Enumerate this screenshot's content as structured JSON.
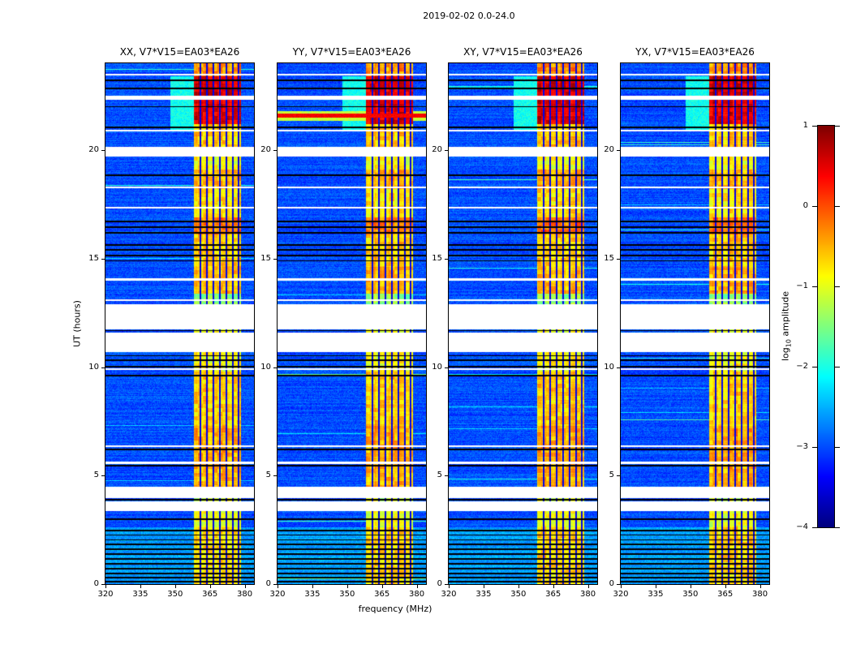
{
  "figure": {
    "title": "2019-02-02 0.0-24.0"
  },
  "chart_data": {
    "type": "heatmap",
    "title": "2019-02-02 0.0-24.0",
    "xlabel": "frequency (MHz)",
    "ylabel": "UT (hours)",
    "x_range_mhz": [
      320,
      384
    ],
    "y_range_hours": [
      0,
      24
    ],
    "xticks": [
      320,
      335,
      350,
      365,
      380
    ],
    "yticks": [
      0,
      5,
      10,
      15,
      20
    ],
    "colormap": "jet",
    "value_range_log10": [
      -4,
      1
    ],
    "legend_position": "right-colorbar",
    "grid": false,
    "panels": [
      {
        "id": "XX",
        "title": "XX, V7*V15=EA03*EA26"
      },
      {
        "id": "YY",
        "title": "YY, V7*V15=EA03*EA26"
      },
      {
        "id": "XY",
        "title": "XY, V7*V15=EA03*EA26"
      },
      {
        "id": "YX",
        "title": "YX, V7*V15=EA03*EA26"
      }
    ],
    "colorbar": {
      "label": "log10 amplitude",
      "label_prefix": "log",
      "label_sub": "10",
      "label_suffix": " amplitude",
      "ticks": [
        1,
        0,
        -1,
        -2,
        -3,
        -4
      ]
    },
    "features": {
      "background_level": -3.0,
      "background_noise": 0.22,
      "bottom_region_end": 2.62,
      "bottom_background_level": -2.6,
      "band": {
        "f_start": 358.0,
        "f_end": 378.5
      },
      "band_stripes_mhz": [
        360.9,
        363.7,
        366.5,
        369.3,
        372.1,
        374.9,
        377.3
      ],
      "band_profile": [
        [
          0.0,
          2.62,
          -0.7
        ],
        [
          2.62,
          3.35,
          -0.95
        ],
        [
          3.82,
          3.95,
          -1.1
        ],
        [
          4.5,
          5.3,
          -0.5
        ],
        [
          5.3,
          7.3,
          -0.45
        ],
        [
          7.3,
          9.8,
          -0.65
        ],
        [
          9.8,
          10.7,
          -0.9
        ],
        [
          11.6,
          11.75,
          -1.0
        ],
        [
          12.9,
          13.4,
          -1.4
        ],
        [
          13.4,
          14.6,
          -0.5
        ],
        [
          14.6,
          16.1,
          -0.65
        ],
        [
          16.1,
          16.9,
          -0.2
        ],
        [
          16.9,
          18.2,
          -0.75
        ],
        [
          18.2,
          19.1,
          -0.5
        ],
        [
          19.1,
          19.7,
          -0.9
        ],
        [
          20.15,
          21.2,
          -0.6
        ],
        [
          21.2,
          22.33,
          0.55
        ],
        [
          22.5,
          23.4,
          0.6
        ],
        [
          23.4,
          24.0,
          -0.35
        ]
      ],
      "white_gaps_hours": [
        [
          3.35,
          3.82
        ],
        [
          3.95,
          4.5
        ],
        [
          10.7,
          11.6
        ],
        [
          11.75,
          12.9
        ],
        [
          19.7,
          20.15
        ],
        [
          22.33,
          22.5
        ],
        [
          5.55,
          5.64
        ],
        [
          6.3,
          6.38
        ],
        [
          9.86,
          9.94
        ],
        [
          13.05,
          13.13
        ],
        [
          14.0,
          14.08
        ],
        [
          17.3,
          17.38
        ],
        [
          18.25,
          18.33
        ],
        [
          20.85,
          20.93
        ],
        [
          23.45,
          23.53
        ]
      ],
      "black_lines_hours": [
        0.12,
        0.3,
        0.5,
        0.72,
        0.94,
        1.16,
        1.38,
        1.6,
        1.82,
        2.04,
        2.26,
        2.48,
        3.0,
        3.88,
        5.45,
        6.2,
        9.6,
        10.02,
        10.32,
        10.52,
        11.68,
        12.2,
        14.9,
        15.15,
        15.4,
        15.62,
        16.2,
        16.45,
        16.7,
        18.85,
        21.05,
        22.0,
        22.85,
        23.2
      ],
      "preband_glow": {
        "t_start": 20.9,
        "t_end": 23.4,
        "f_start": 348.0,
        "f_end": 358.0,
        "level": -2.05
      },
      "yy_red_line": {
        "t": 21.58,
        "level": 0.4,
        "half_width_hours": 0.09
      }
    }
  }
}
